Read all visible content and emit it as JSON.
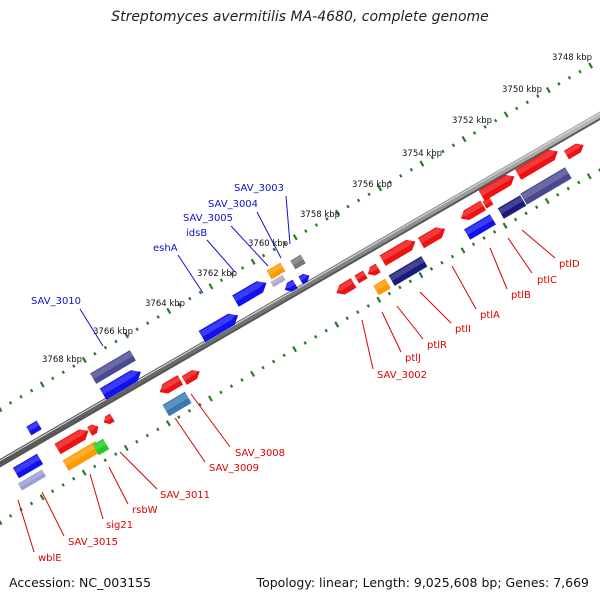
{
  "title": "Streptomyces avermitilis MA-4680, complete genome",
  "footer": {
    "accession": "Accession: NC_003155",
    "summary": "Topology: linear; Length: 9,025,608 bp; Genes: 7,669"
  },
  "colors": {
    "red": "#ee1111",
    "blue": "#1111ee",
    "navy": "#1a1a7a",
    "slate": "#4a4a90",
    "steel": "#3a78b0",
    "orange": "#ff9900",
    "green": "#22cc22",
    "gray": "#777777",
    "backbone": "#888888",
    "ruler": "#2a7a2a"
  },
  "ruler_labels": [
    "3748 kbp",
    "3750 kbp",
    "3752 kbp",
    "3754 kbp",
    "3756 kbp",
    "3758 kbp",
    "3760 kbp",
    "3762 kbp",
    "3764 kbp",
    "3766 kbp",
    "3768 kbp"
  ],
  "gene_labels": [
    {
      "text": "SAV_3003",
      "color": "blue"
    },
    {
      "text": "SAV_3004",
      "color": "blue"
    },
    {
      "text": "SAV_3005",
      "color": "blue"
    },
    {
      "text": "idsB",
      "color": "blue"
    },
    {
      "text": "eshA",
      "color": "blue"
    },
    {
      "text": "SAV_3010",
      "color": "blue"
    },
    {
      "text": "ptlD",
      "color": "red"
    },
    {
      "text": "ptlC",
      "color": "red"
    },
    {
      "text": "ptlB",
      "color": "red"
    },
    {
      "text": "ptlA",
      "color": "red"
    },
    {
      "text": "ptlI",
      "color": "red"
    },
    {
      "text": "ptlR",
      "color": "red"
    },
    {
      "text": "ptlJ",
      "color": "red"
    },
    {
      "text": "SAV_3002",
      "color": "red"
    },
    {
      "text": "SAV_3008",
      "color": "red"
    },
    {
      "text": "SAV_3009",
      "color": "red"
    },
    {
      "text": "SAV_3011",
      "color": "red"
    },
    {
      "text": "rsbW",
      "color": "red"
    },
    {
      "text": "sig21",
      "color": "red"
    },
    {
      "text": "SAV_3015",
      "color": "red"
    },
    {
      "text": "wblE",
      "color": "red"
    }
  ]
}
